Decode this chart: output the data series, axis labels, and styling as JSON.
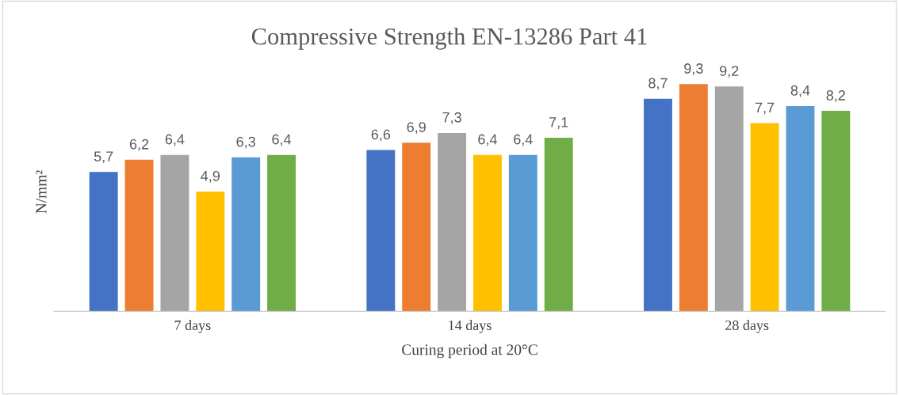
{
  "chart_data": {
    "type": "bar",
    "title": "Compressive Strength EN-13286 Part 41",
    "xlabel": "Curing period at 20°C",
    "ylabel": "N/mm²",
    "categories": [
      "7 days",
      "14 days",
      "28 days"
    ],
    "series": [
      {
        "color": "#4472c4",
        "values": [
          5.7,
          6.6,
          8.7
        ],
        "value_labels": [
          "5,7",
          "6,6",
          "8,7"
        ]
      },
      {
        "color": "#ed7d31",
        "values": [
          6.2,
          6.9,
          9.3
        ],
        "value_labels": [
          "6,2",
          "6,9",
          "9,3"
        ]
      },
      {
        "color": "#a5a5a5",
        "values": [
          6.4,
          7.3,
          9.2
        ],
        "value_labels": [
          "6,4",
          "7,3",
          "9,2"
        ]
      },
      {
        "color": "#ffc000",
        "values": [
          4.9,
          6.4,
          7.7
        ],
        "value_labels": [
          "4,9",
          "6,4",
          "7,7"
        ]
      },
      {
        "color": "#5b9bd5",
        "values": [
          6.3,
          6.4,
          8.4
        ],
        "value_labels": [
          "6,3",
          "6,4",
          "8,4"
        ]
      },
      {
        "color": "#70ad47",
        "values": [
          6.4,
          7.1,
          8.2
        ],
        "value_labels": [
          "6,4",
          "7,1",
          "8,2"
        ]
      }
    ],
    "tick_labels": "x",
    "grid": false,
    "legend": false
  }
}
